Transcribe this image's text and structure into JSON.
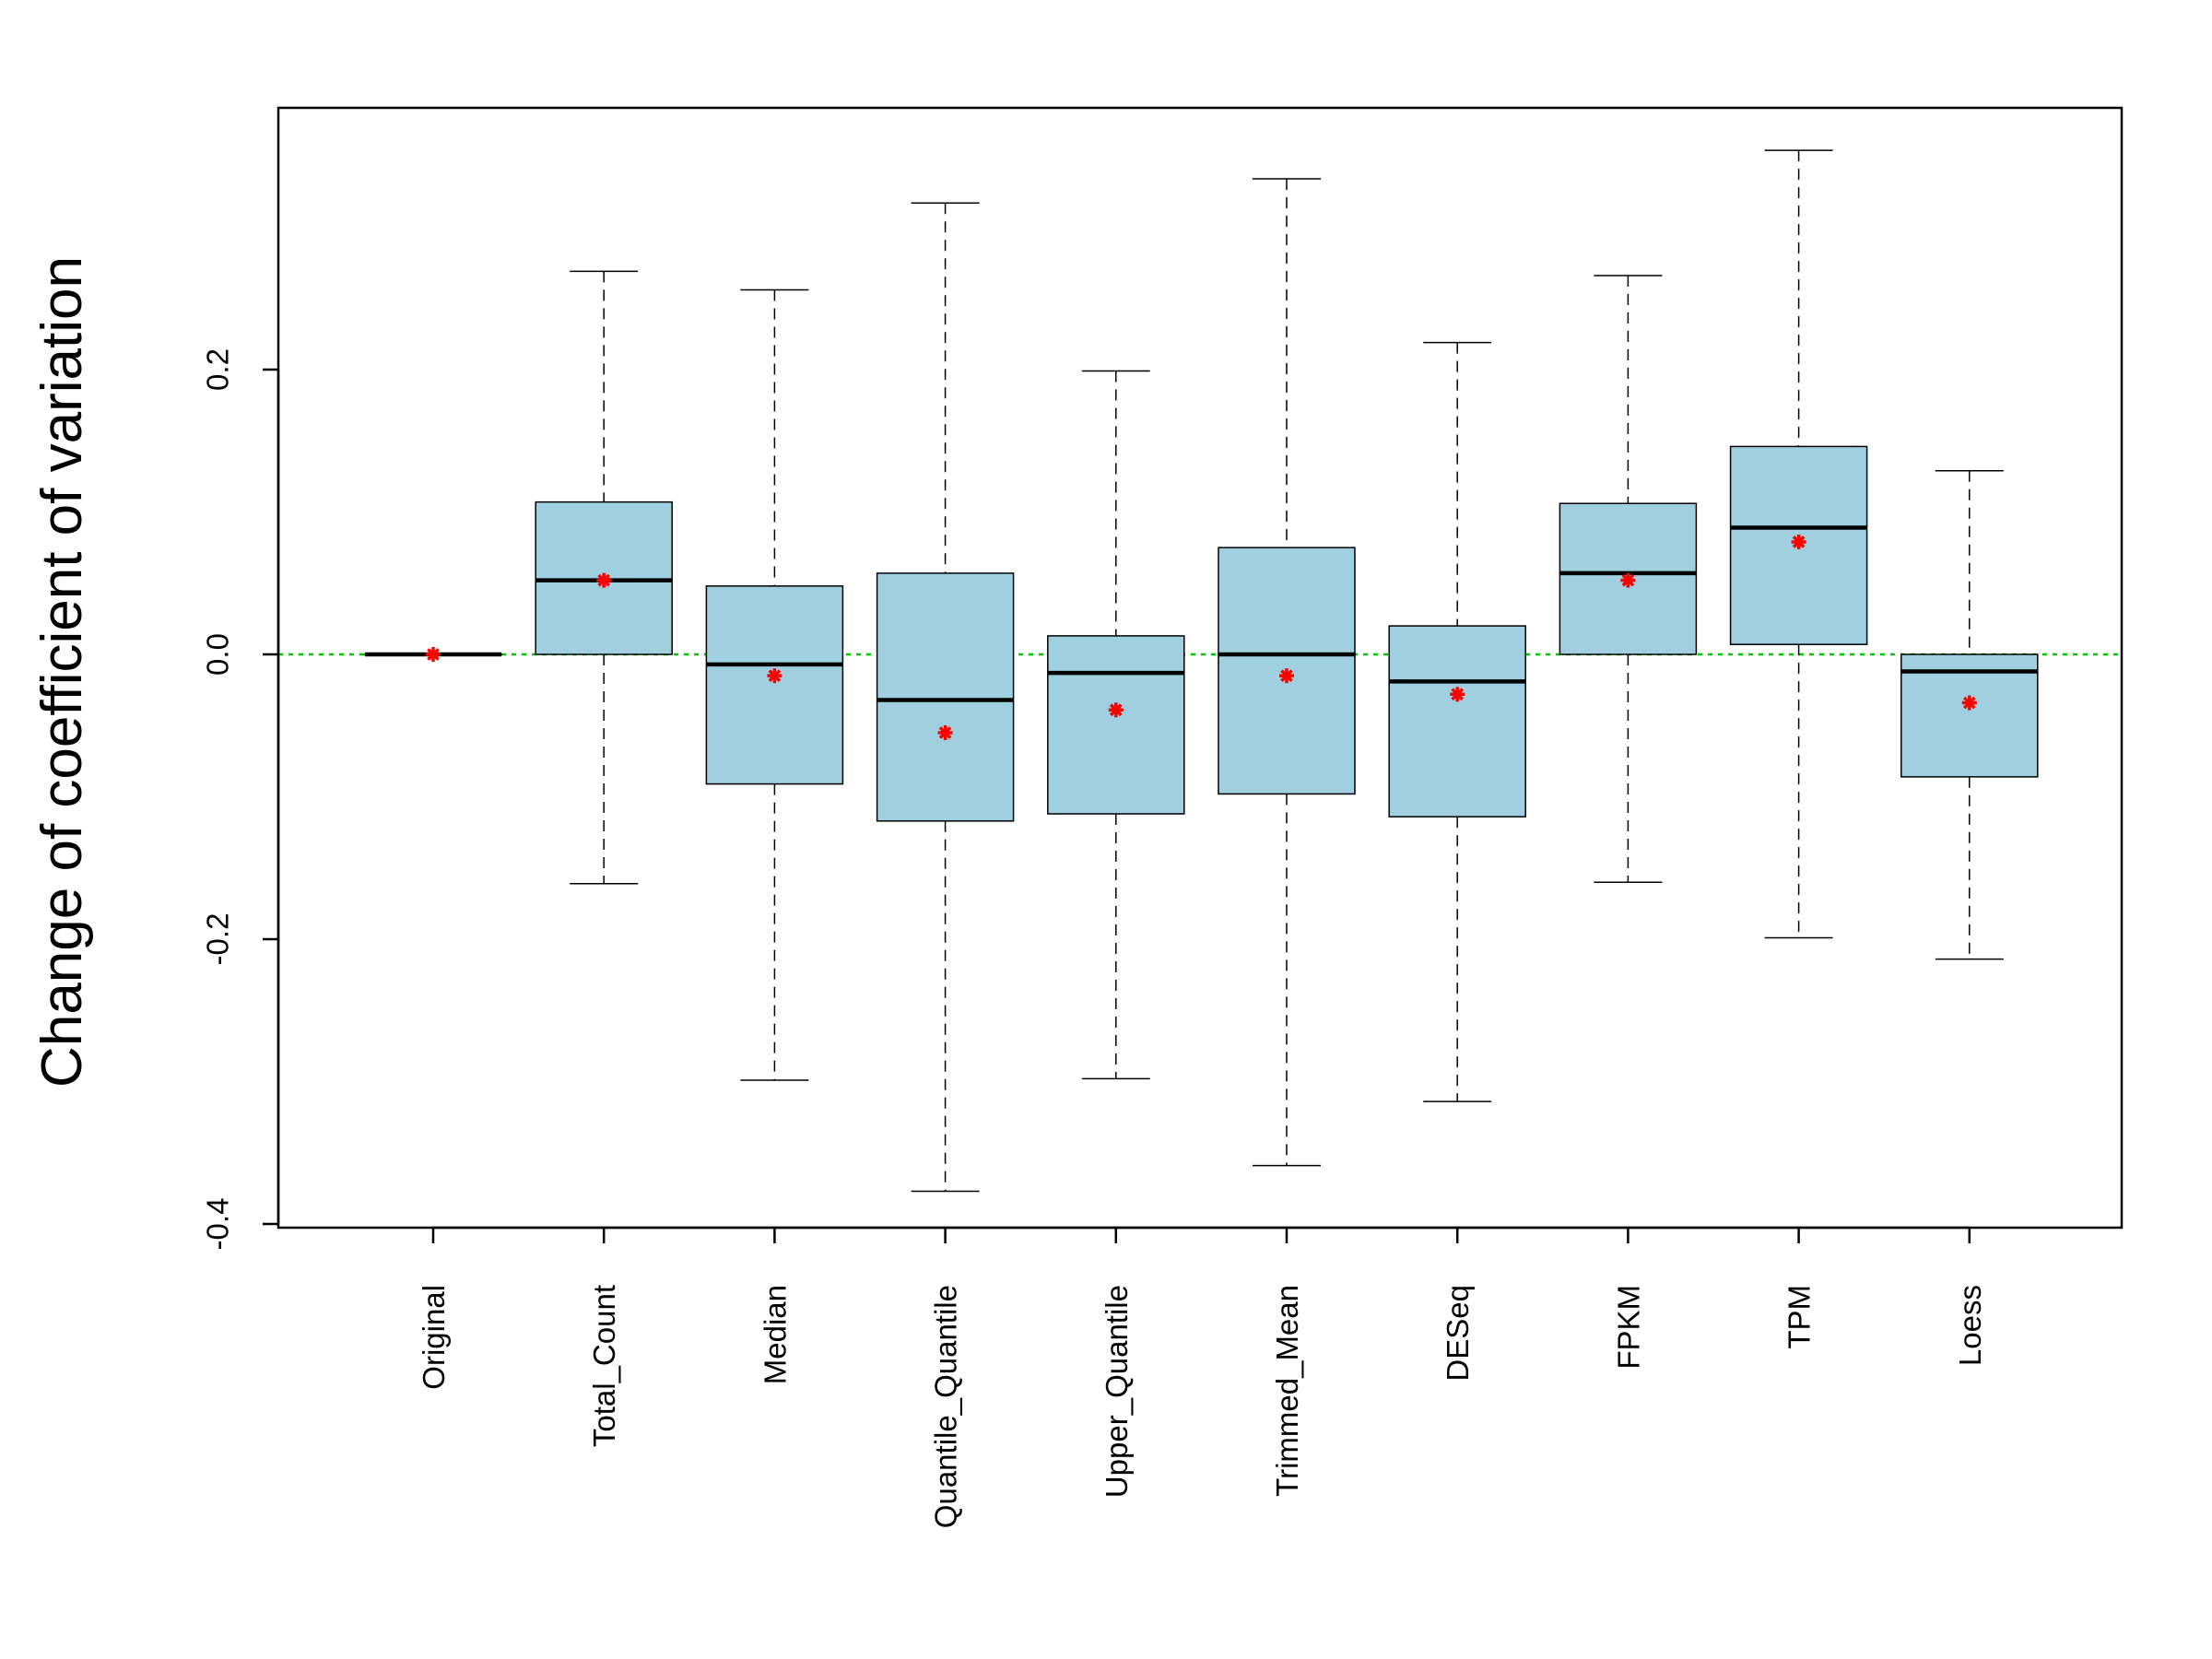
{
  "chart_data": {
    "type": "box",
    "ylabel": "Change of coefficient of variation",
    "xlabel": "",
    "title": "",
    "ylim": [
      -0.4,
      0.37
    ],
    "yticks": [
      -0.4,
      -0.2,
      0.0,
      0.2
    ],
    "ytick_labels": [
      "-0.4",
      "-0.2",
      "0.0",
      "0.2"
    ],
    "reference_line": {
      "y": 0.0,
      "color": "#00c800",
      "style": "dotted"
    },
    "box_fill": "#a0d0e0",
    "mean_marker_color": "#ff0000",
    "categories": [
      "Original",
      "Total_Count",
      "Median",
      "Quantile_Quantile",
      "Upper_Quantile",
      "Trimmed_Mean",
      "DESeq",
      "FPKM",
      "TPM",
      "Loess"
    ],
    "boxes": [
      {
        "name": "Original",
        "whisker_low": 0.0,
        "q1": 0.0,
        "median": 0.0,
        "q3": 0.0,
        "whisker_high": 0.0,
        "mean": 0.0
      },
      {
        "name": "Total_Count",
        "whisker_low": -0.161,
        "q1": 0.0,
        "median": 0.052,
        "q3": 0.107,
        "whisker_high": 0.269,
        "mean": 0.052
      },
      {
        "name": "Median",
        "whisker_low": -0.299,
        "q1": -0.091,
        "median": -0.007,
        "q3": 0.048,
        "whisker_high": 0.256,
        "mean": -0.015
      },
      {
        "name": "Quantile_Quantile",
        "whisker_low": -0.377,
        "q1": -0.117,
        "median": -0.032,
        "q3": 0.057,
        "whisker_high": 0.317,
        "mean": -0.055
      },
      {
        "name": "Upper_Quantile",
        "whisker_low": -0.298,
        "q1": -0.112,
        "median": -0.013,
        "q3": 0.013,
        "whisker_high": 0.199,
        "mean": -0.039
      },
      {
        "name": "Trimmed_Mean",
        "whisker_low": -0.359,
        "q1": -0.098,
        "median": 0.0,
        "q3": 0.075,
        "whisker_high": 0.334,
        "mean": -0.015
      },
      {
        "name": "DESeq",
        "whisker_low": -0.314,
        "q1": -0.114,
        "median": -0.019,
        "q3": 0.02,
        "whisker_high": 0.219,
        "mean": -0.028
      },
      {
        "name": "FPKM",
        "whisker_low": -0.16,
        "q1": 0.0,
        "median": 0.057,
        "q3": 0.106,
        "whisker_high": 0.266,
        "mean": 0.052
      },
      {
        "name": "TPM",
        "whisker_low": -0.199,
        "q1": 0.007,
        "median": 0.089,
        "q3": 0.146,
        "whisker_high": 0.354,
        "mean": 0.079
      },
      {
        "name": "Loess",
        "whisker_low": -0.214,
        "q1": -0.086,
        "median": -0.012,
        "q3": 0.0,
        "whisker_high": 0.129,
        "mean": -0.034
      }
    ]
  }
}
